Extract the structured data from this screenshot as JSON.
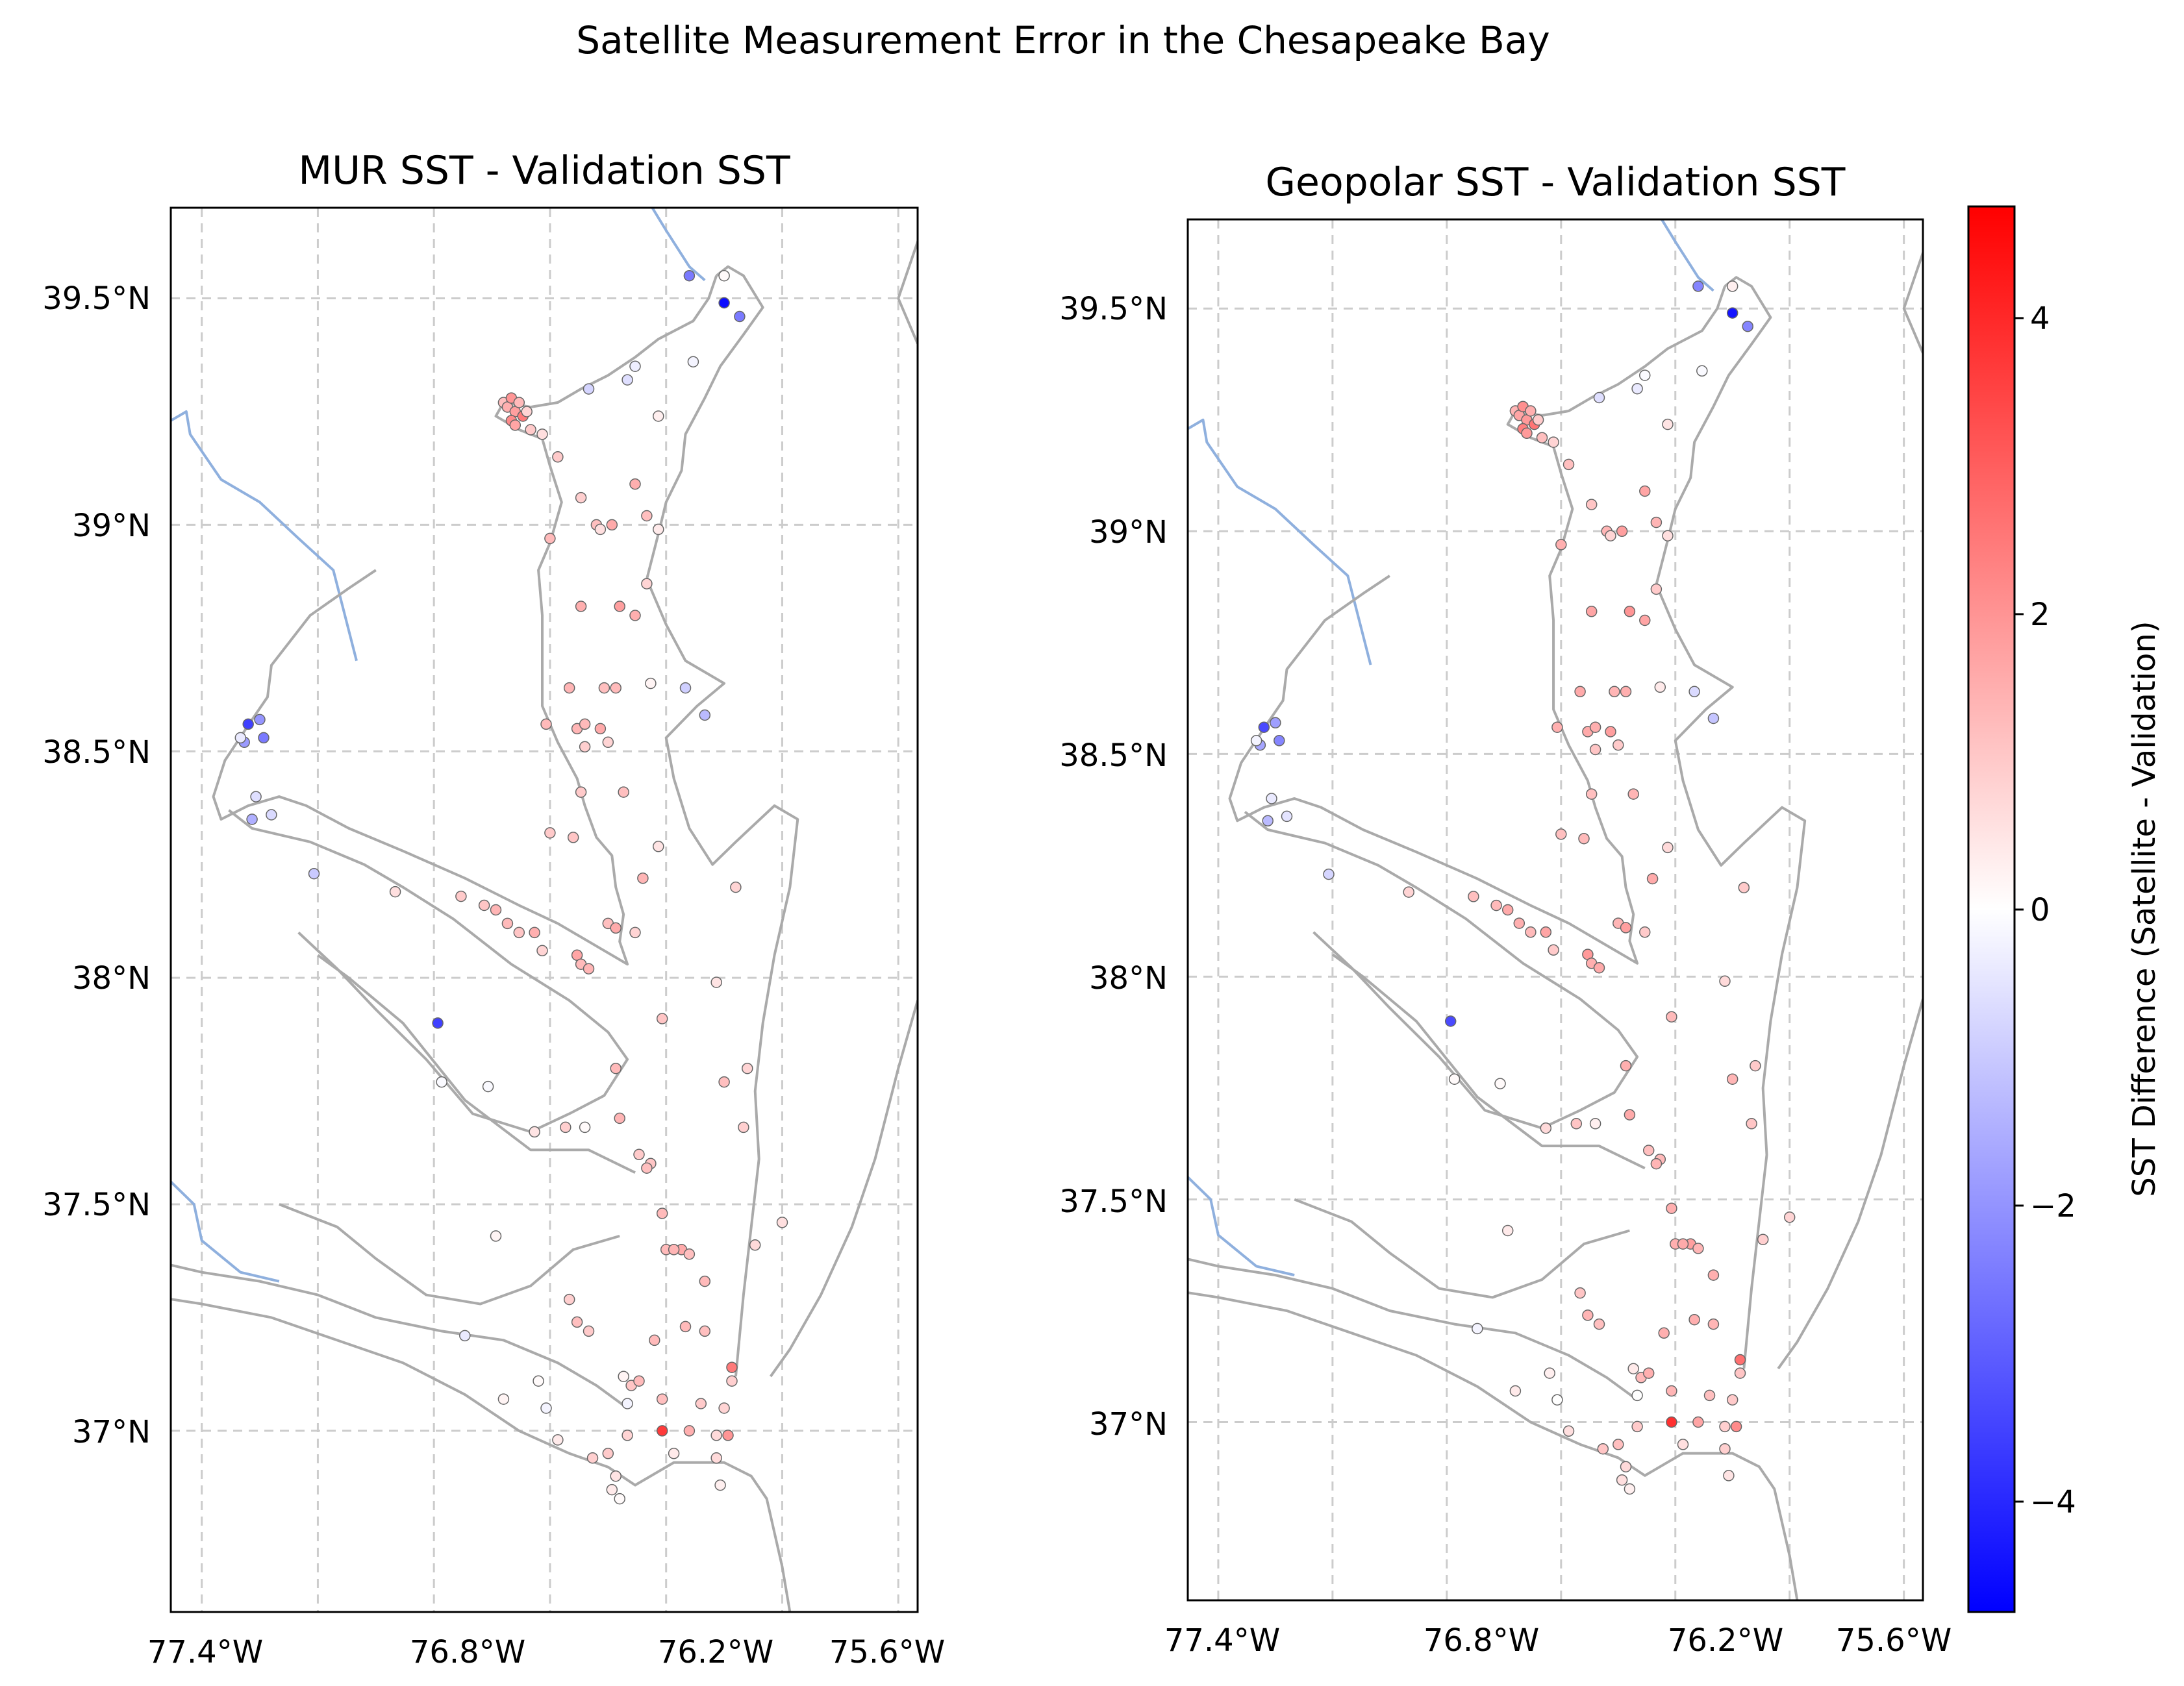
{
  "figure": {
    "suptitle": "Satellite Measurement Error in the Chesapeake Bay"
  },
  "panels": [
    {
      "id": "mur",
      "title": "MUR SST - Validation SST"
    },
    {
      "id": "geopolar",
      "title": "Geopolar SST - Validation SST"
    }
  ],
  "axes": {
    "xticks": [
      "77.4°W",
      "76.8°W",
      "76.2°W",
      "75.6°W"
    ],
    "yticks": [
      "39.5°N",
      "39°N",
      "38.5°N",
      "38°N",
      "37.5°N",
      "37°N"
    ]
  },
  "colorbar": {
    "label": "SST Difference (Satellite - Validation)",
    "ticks": [
      "4",
      "2",
      "0",
      "−2",
      "−4"
    ],
    "colormap": "bwr",
    "range": [
      -4.8,
      4.8
    ],
    "colors": {
      "low": "#0000ff",
      "mid": "#ffffff",
      "high": "#ff0000"
    }
  },
  "map_style": {
    "coastline_color": "#aaaaaa",
    "border_color": "#8fb0de",
    "grid": "dashed"
  },
  "chart_data": {
    "type": "scatter",
    "xlim": [
      -77.48,
      -75.55
    ],
    "ylim": [
      36.6,
      39.7
    ],
    "series": [
      {
        "panel": "MUR SST - Validation SST",
        "x": [
          -76.62,
          -76.61,
          -76.6,
          -76.59,
          -76.58,
          -76.57,
          -76.6,
          -76.59,
          -76.56,
          -76.55,
          -76.52,
          -76.4,
          -76.3,
          -76.28,
          -76.22,
          -76.14,
          -76.13,
          -76.05,
          -76.01,
          -76.48,
          -76.42,
          -76.38,
          -76.34,
          -76.28,
          -76.25,
          -76.5,
          -76.42,
          -76.37,
          -76.32,
          -76.28,
          -76.22,
          -76.45,
          -76.36,
          -76.33,
          -76.25,
          -76.51,
          -76.43,
          -76.41,
          -76.37,
          -76.24,
          -76.15,
          -76.1,
          -76.5,
          -76.44,
          -76.42,
          -76.41,
          -76.35,
          -76.31,
          -76.26,
          -76.22,
          -76.35,
          -76.33,
          -76.28,
          -76.21,
          -76.07,
          -76.02,
          -77.28,
          -77.25,
          -77.29,
          -77.22,
          -77.11,
          -76.9,
          -76.73,
          -76.67,
          -76.64,
          -76.61,
          -76.58,
          -76.54,
          -76.52,
          -76.43,
          -76.42,
          -76.4,
          -76.33,
          -76.32,
          -76.24,
          -76.25,
          -76.21,
          -76.16,
          -76.05,
          -76.0,
          -75.99,
          -75.9,
          -75.97,
          -76.2,
          -76.18,
          -76.14,
          -76.1,
          -76.15,
          -76.03,
          -76.05,
          -76.11,
          -76.07,
          -76.79,
          -76.66,
          -76.54,
          -76.46,
          -76.41,
          -76.27,
          -76.64,
          -76.45,
          -76.43,
          -76.4,
          -76.23,
          -76.1,
          -76.29,
          -76.27,
          -76.21,
          -76.14,
          -76.04,
          -76.62,
          -76.48,
          -76.39,
          -76.35,
          -76.3,
          -76.18,
          -76.07,
          -76.06,
          -76.34,
          -76.33,
          -76.32,
          -76.31,
          -76.21,
          -76.03,
          -76.05,
          -77.26,
          -77.27,
          -77.24,
          -77.3,
          -76.72,
          -76.78,
          -76.51,
          -76.3,
          -76.53
        ],
        "y": [
          39.27,
          39.26,
          39.28,
          39.25,
          39.27,
          39.24,
          39.23,
          39.22,
          39.25,
          39.21,
          39.2,
          39.3,
          39.32,
          39.35,
          39.24,
          39.55,
          39.36,
          39.49,
          39.46,
          39.15,
          39.06,
          39.0,
          39.0,
          39.09,
          39.02,
          38.97,
          38.82,
          38.99,
          38.82,
          38.8,
          38.99,
          38.64,
          38.64,
          38.64,
          38.87,
          38.56,
          38.55,
          38.56,
          38.55,
          38.65,
          38.64,
          38.58,
          38.32,
          38.31,
          38.41,
          38.51,
          38.52,
          38.41,
          38.22,
          38.29,
          38.12,
          38.11,
          38.1,
          37.91,
          37.99,
          38.2,
          38.56,
          38.57,
          38.52,
          38.36,
          38.23,
          38.19,
          38.18,
          38.16,
          38.15,
          38.12,
          38.1,
          38.1,
          38.06,
          38.05,
          38.03,
          38.02,
          37.8,
          37.69,
          37.59,
          37.58,
          37.48,
          37.4,
          37.77,
          37.67,
          37.8,
          37.46,
          37.41,
          37.4,
          37.4,
          37.39,
          37.33,
          37.23,
          37.11,
          37.05,
          37.06,
          36.99,
          37.9,
          37.76,
          37.66,
          37.67,
          37.67,
          37.61,
          37.43,
          37.29,
          37.24,
          37.22,
          37.2,
          37.22,
          37.1,
          37.11,
          37.07,
          37.0,
          36.99,
          37.07,
          36.98,
          36.94,
          36.95,
          36.99,
          36.95,
          36.94,
          36.88,
          36.87,
          36.9,
          36.85,
          37.12,
          37.0,
          37.14,
          39.55,
          38.4,
          38.35,
          38.53,
          38.53,
          37.21,
          37.77,
          37.05,
          37.06,
          37.11
        ],
        "values": [
          1.2,
          1.5,
          2.0,
          1.8,
          1.3,
          2.5,
          2.2,
          1.7,
          0.8,
          1.0,
          0.6,
          -0.8,
          -0.6,
          -0.3,
          0.3,
          -2.5,
          -0.2,
          -4.6,
          -2.5,
          1.0,
          0.9,
          1.2,
          1.6,
          1.5,
          1.2,
          1.3,
          1.5,
          0.6,
          1.8,
          1.5,
          0.4,
          1.4,
          1.2,
          1.3,
          0.8,
          1.3,
          1.4,
          1.3,
          1.6,
          0.2,
          -0.9,
          -1.3,
          1.0,
          1.1,
          1.0,
          0.9,
          0.8,
          1.2,
          1.4,
          0.5,
          1.2,
          1.6,
          0.8,
          1.1,
          0.5,
          0.8,
          -3.6,
          -2.0,
          -1.9,
          -0.7,
          -1.0,
          0.6,
          1.0,
          1.1,
          1.4,
          1.3,
          1.1,
          1.5,
          0.8,
          1.7,
          1.3,
          1.4,
          1.3,
          1.4,
          1.1,
          1.2,
          1.3,
          1.6,
          1.2,
          0.9,
          0.8,
          0.6,
          0.7,
          1.3,
          1.4,
          1.2,
          1.3,
          1.3,
          0.9,
          0.8,
          1.0,
          0.7,
          -3.6,
          -0.1,
          0.5,
          0.9,
          0.1,
          1.0,
          0.2,
          0.9,
          1.2,
          1.0,
          1.3,
          1.2,
          1.1,
          1.3,
          1.2,
          1.5,
          2.0,
          0.2,
          0.4,
          0.9,
          1.0,
          0.8,
          0.4,
          0.7,
          0.3,
          0.4,
          0.5,
          0.1,
          0.2,
          3.7,
          2.5,
          0.1,
          -0.6,
          -1.5,
          -2.5,
          -0.4,
          -0.4,
          -0.1,
          -0.2,
          -0.2,
          0.1
        ]
      },
      {
        "panel": "Geopolar SST - Validation SST",
        "x": [
          -76.62,
          -76.61,
          -76.6,
          -76.59,
          -76.58,
          -76.57,
          -76.6,
          -76.59,
          -76.56,
          -76.55,
          -76.52,
          -76.4,
          -76.3,
          -76.28,
          -76.22,
          -76.14,
          -76.13,
          -76.05,
          -76.01,
          -76.48,
          -76.42,
          -76.38,
          -76.34,
          -76.28,
          -76.25,
          -76.5,
          -76.42,
          -76.37,
          -76.32,
          -76.28,
          -76.22,
          -76.45,
          -76.36,
          -76.33,
          -76.25,
          -76.51,
          -76.43,
          -76.41,
          -76.37,
          -76.24,
          -76.15,
          -76.1,
          -76.5,
          -76.44,
          -76.42,
          -76.41,
          -76.35,
          -76.31,
          -76.26,
          -76.22,
          -76.35,
          -76.33,
          -76.28,
          -76.21,
          -76.07,
          -76.02,
          -77.28,
          -77.25,
          -77.29,
          -77.22,
          -77.11,
          -76.9,
          -76.73,
          -76.67,
          -76.64,
          -76.61,
          -76.58,
          -76.54,
          -76.52,
          -76.43,
          -76.42,
          -76.4,
          -76.33,
          -76.32,
          -76.24,
          -76.25,
          -76.21,
          -76.16,
          -76.05,
          -76.0,
          -75.99,
          -75.9,
          -75.97,
          -76.2,
          -76.18,
          -76.14,
          -76.1,
          -76.15,
          -76.03,
          -76.05,
          -76.11,
          -76.07,
          -76.79,
          -76.66,
          -76.54,
          -76.46,
          -76.41,
          -76.27,
          -76.64,
          -76.45,
          -76.43,
          -76.4,
          -76.23,
          -76.1,
          -76.29,
          -76.27,
          -76.21,
          -76.14,
          -76.04,
          -76.62,
          -76.48,
          -76.39,
          -76.35,
          -76.3,
          -76.18,
          -76.07,
          -76.06,
          -76.34,
          -76.33,
          -76.32,
          -76.31,
          -76.21,
          -76.03,
          -76.05,
          -77.26,
          -77.27,
          -77.24,
          -77.3,
          -76.72,
          -76.78,
          -76.51,
          -76.3,
          -76.53
        ],
        "y": [
          39.27,
          39.26,
          39.28,
          39.25,
          39.27,
          39.24,
          39.23,
          39.22,
          39.25,
          39.21,
          39.2,
          39.3,
          39.32,
          39.35,
          39.24,
          39.55,
          39.36,
          39.49,
          39.46,
          39.15,
          39.06,
          39.0,
          39.0,
          39.09,
          39.02,
          38.97,
          38.82,
          38.99,
          38.82,
          38.8,
          38.99,
          38.64,
          38.64,
          38.64,
          38.87,
          38.56,
          38.55,
          38.56,
          38.55,
          38.65,
          38.64,
          38.58,
          38.32,
          38.31,
          38.41,
          38.51,
          38.52,
          38.41,
          38.22,
          38.29,
          38.12,
          38.11,
          38.1,
          37.91,
          37.99,
          38.2,
          38.56,
          38.57,
          38.52,
          38.36,
          38.23,
          38.19,
          38.18,
          38.16,
          38.15,
          38.12,
          38.1,
          38.1,
          38.06,
          38.05,
          38.03,
          38.02,
          37.8,
          37.69,
          37.59,
          37.58,
          37.48,
          37.4,
          37.77,
          37.67,
          37.8,
          37.46,
          37.41,
          37.4,
          37.4,
          37.39,
          37.33,
          37.23,
          37.11,
          37.05,
          37.06,
          36.99,
          37.9,
          37.76,
          37.66,
          37.67,
          37.67,
          37.61,
          37.43,
          37.29,
          37.24,
          37.22,
          37.2,
          37.22,
          37.1,
          37.11,
          37.07,
          37.0,
          36.99,
          37.07,
          36.98,
          36.94,
          36.95,
          36.99,
          36.95,
          36.94,
          36.88,
          36.87,
          36.9,
          36.85,
          37.12,
          37.0,
          37.14,
          39.55,
          38.4,
          38.35,
          38.53,
          38.53,
          37.21,
          37.77,
          37.05,
          37.06,
          37.11
        ],
        "values": [
          1.4,
          1.7,
          2.1,
          1.9,
          1.5,
          2.6,
          2.4,
          1.9,
          1.0,
          1.2,
          0.8,
          -0.6,
          -0.4,
          -0.1,
          0.5,
          -2.3,
          -0.1,
          -4.4,
          -2.3,
          1.2,
          1.1,
          1.4,
          1.8,
          1.7,
          1.4,
          1.5,
          1.7,
          0.8,
          2.0,
          1.7,
          0.6,
          1.6,
          1.4,
          1.5,
          1.0,
          1.5,
          1.6,
          1.5,
          1.8,
          0.4,
          -0.7,
          -1.1,
          1.2,
          1.3,
          1.2,
          1.1,
          1.0,
          1.4,
          1.6,
          0.7,
          1.4,
          1.8,
          1.0,
          1.3,
          0.7,
          1.0,
          -3.4,
          -1.8,
          -1.7,
          -0.5,
          -0.8,
          0.8,
          1.2,
          1.3,
          1.6,
          1.5,
          1.3,
          1.7,
          1.0,
          1.9,
          1.5,
          1.6,
          1.5,
          1.6,
          1.3,
          1.4,
          1.5,
          1.8,
          1.4,
          1.1,
          1.0,
          0.8,
          0.9,
          1.5,
          1.6,
          1.4,
          1.5,
          1.5,
          1.1,
          1.0,
          1.2,
          0.9,
          -3.4,
          0.1,
          0.7,
          1.1,
          0.3,
          1.2,
          0.4,
          1.1,
          1.4,
          1.2,
          1.5,
          1.4,
          1.3,
          1.5,
          1.4,
          1.7,
          2.2,
          0.4,
          0.6,
          1.1,
          1.2,
          1.0,
          0.6,
          0.9,
          0.5,
          0.6,
          0.7,
          0.3,
          0.4,
          3.9,
          2.7,
          0.3,
          -0.4,
          -1.3,
          -2.3,
          -0.2,
          -0.2,
          0.1,
          0.0,
          0.0,
          0.3
        ]
      }
    ]
  }
}
